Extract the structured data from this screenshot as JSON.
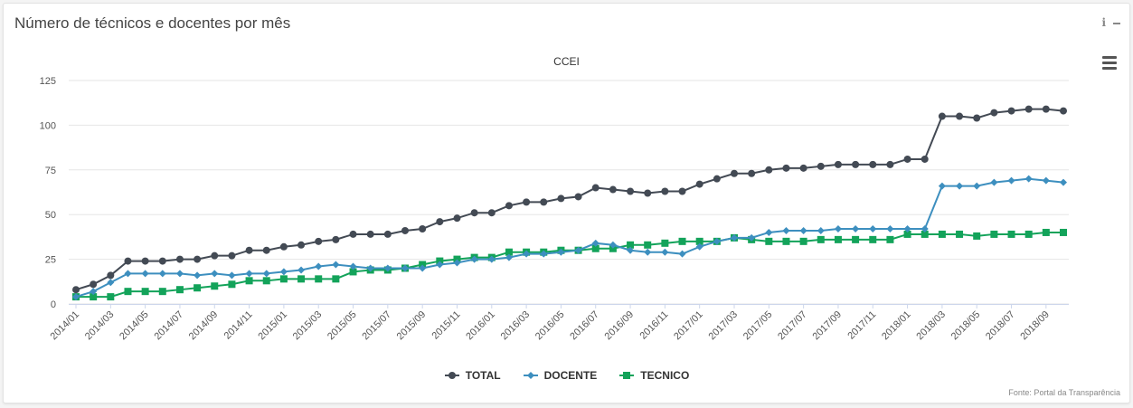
{
  "panel": {
    "title": "Número de técnicos e docentes por mês",
    "info_icon": "info-icon",
    "minimize_icon": "minus-icon",
    "menu_icon": "hamburger-icon",
    "source": "Fonte: Portal da Transparência"
  },
  "chart_data": {
    "type": "line",
    "title": "CCEI",
    "xlabel": "",
    "ylabel": "",
    "ylim": [
      0,
      125
    ],
    "yticks": [
      0,
      25,
      50,
      75,
      100,
      125
    ],
    "grid": true,
    "legend_position": "bottom-center",
    "x": [
      "2014/01",
      "2014/02",
      "2014/03",
      "2014/04",
      "2014/05",
      "2014/06",
      "2014/07",
      "2014/08",
      "2014/09",
      "2014/10",
      "2014/11",
      "2014/12",
      "2015/01",
      "2015/02",
      "2015/03",
      "2015/04",
      "2015/05",
      "2015/06",
      "2015/07",
      "2015/08",
      "2015/09",
      "2015/10",
      "2015/11",
      "2015/12",
      "2016/01",
      "2016/02",
      "2016/03",
      "2016/04",
      "2016/05",
      "2016/06",
      "2016/07",
      "2016/08",
      "2016/09",
      "2016/10",
      "2016/11",
      "2016/12",
      "2017/01",
      "2017/02",
      "2017/03",
      "2017/04",
      "2017/05",
      "2017/06",
      "2017/07",
      "2017/08",
      "2017/09",
      "2017/10",
      "2017/11",
      "2017/12",
      "2018/01",
      "2018/02",
      "2018/03",
      "2018/04",
      "2018/05",
      "2018/06",
      "2018/07",
      "2018/08",
      "2018/09",
      "2018/10"
    ],
    "xtick_labels": [
      "2014/01",
      "2014/03",
      "2014/05",
      "2014/07",
      "2014/09",
      "2014/11",
      "2015/01",
      "2015/03",
      "2015/05",
      "2015/07",
      "2015/09",
      "2015/11",
      "2016/01",
      "2016/03",
      "2016/05",
      "2016/07",
      "2016/09",
      "2016/11",
      "2017/01",
      "2017/03",
      "2017/05",
      "2017/07",
      "2017/09",
      "2017/11",
      "2018/01",
      "2018/03",
      "2018/05",
      "2018/07",
      "2018/09"
    ],
    "series": [
      {
        "name": "TOTAL",
        "color": "#434a54",
        "marker": "circle",
        "values": [
          8,
          11,
          16,
          24,
          24,
          24,
          25,
          25,
          27,
          27,
          30,
          30,
          32,
          33,
          35,
          36,
          39,
          39,
          39,
          41,
          42,
          46,
          48,
          51,
          51,
          55,
          57,
          57,
          59,
          60,
          65,
          64,
          63,
          62,
          63,
          63,
          67,
          70,
          73,
          73,
          75,
          76,
          76,
          77,
          78,
          78,
          78,
          78,
          81,
          81,
          105,
          105,
          104,
          107,
          108,
          109,
          109,
          108
        ]
      },
      {
        "name": "DOCENTE",
        "color": "#3d8fbf",
        "marker": "diamond",
        "values": [
          4,
          7,
          12,
          17,
          17,
          17,
          17,
          16,
          17,
          16,
          17,
          17,
          18,
          19,
          21,
          22,
          21,
          20,
          20,
          20,
          20,
          22,
          23,
          25,
          25,
          26,
          28,
          28,
          29,
          30,
          34,
          33,
          30,
          29,
          29,
          28,
          32,
          35,
          37,
          37,
          40,
          41,
          41,
          41,
          42,
          42,
          42,
          42,
          42,
          42,
          66,
          66,
          66,
          68,
          69,
          70,
          69,
          68
        ]
      },
      {
        "name": "TECNICO",
        "color": "#13a35a",
        "marker": "square",
        "values": [
          4,
          4,
          4,
          7,
          7,
          7,
          8,
          9,
          10,
          11,
          13,
          13,
          14,
          14,
          14,
          14,
          18,
          19,
          19,
          20,
          22,
          24,
          25,
          26,
          26,
          29,
          29,
          29,
          30,
          30,
          31,
          31,
          33,
          33,
          34,
          35,
          35,
          35,
          37,
          36,
          35,
          35,
          35,
          36,
          36,
          36,
          36,
          36,
          39,
          39,
          39,
          39,
          38,
          39,
          39,
          39,
          40,
          40
        ]
      }
    ]
  }
}
